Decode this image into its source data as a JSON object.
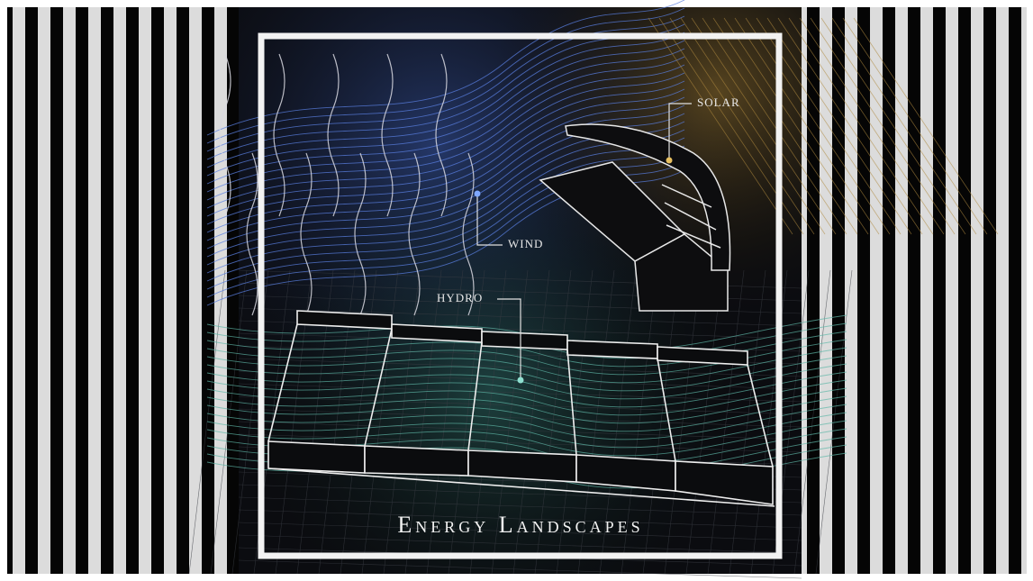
{
  "title": "Energy Landscapes",
  "labels": {
    "solar": "SOLAR",
    "wind": "WIND",
    "hydro": "HYDRO"
  }
}
